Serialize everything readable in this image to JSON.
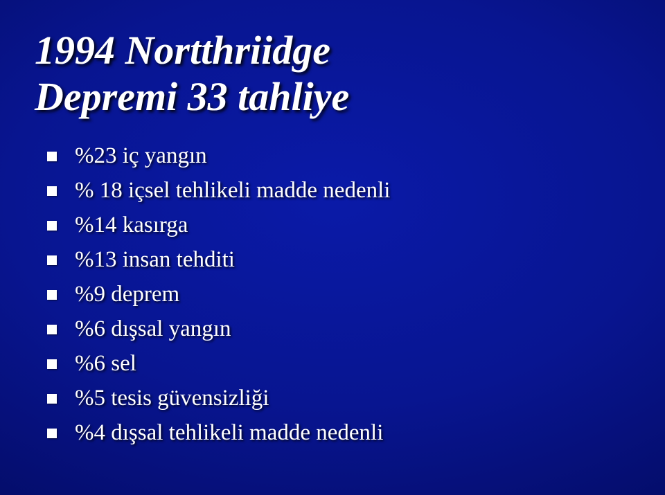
{
  "slide": {
    "title_line1": "1994 Nortthriidge",
    "title_line2": "Depremi 33 tahliye",
    "title_fontsize": 58,
    "title_color": "#ffffff",
    "title_font_style": "bold italic",
    "background_gradient": {
      "center": "#0a1aa8",
      "mid": "#081590",
      "outer": "#030a60",
      "edge": "#010540"
    },
    "bullets": [
      {
        "text": "%23 iç yangın"
      },
      {
        "text": "% 18 içsel tehlikeli madde nedenli"
      },
      {
        "text": "%14 kasırga"
      },
      {
        "text": "%13 insan tehditi"
      },
      {
        "text": "%9 deprem"
      },
      {
        "text": "%6 dışsal yangın"
      },
      {
        "text": "%6 sel"
      },
      {
        "text": "%5 tesis güvensizliği"
      },
      {
        "text": "%4 dışsal tehlikeli madde nedenli"
      }
    ],
    "bullet_fontsize": 33,
    "bullet_color": "#ffffff",
    "bullet_marker_color": "#ffffff",
    "bullet_marker_size": 14
  }
}
